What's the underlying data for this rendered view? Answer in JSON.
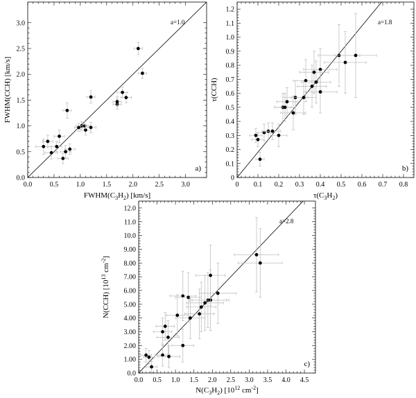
{
  "chart_data": [
    {
      "type": "scatter",
      "panel": "a)",
      "xlabel_main": "FWHM(C",
      "xlabel_sub1": "3",
      "xlabel_mid": "H",
      "xlabel_sub2": "2",
      "xlabel_end": ") [km/s]",
      "ylabel": "FWHM(CCH) [km/s]",
      "xlim": [
        0,
        3.4
      ],
      "ylim": [
        0,
        3.4
      ],
      "xticks": [
        0.0,
        0.5,
        1.0,
        1.5,
        2.0,
        2.5,
        3.0
      ],
      "xtick_labels": [
        "0.0",
        "0.5",
        "1.0",
        "1.5",
        "2.0",
        "2.5",
        "3.0"
      ],
      "yticks": [
        0.0,
        0.5,
        1.0,
        1.5,
        2.0,
        2.5,
        3.0
      ],
      "ytick_labels": [
        "0.0",
        "0.5",
        "1.0",
        "1.5",
        "2.0",
        "2.5",
        "3.0"
      ],
      "annotation": "a=1.0",
      "fit_line": {
        "x": [
          0,
          3.4
        ],
        "y": [
          0,
          3.4
        ]
      },
      "points": [
        {
          "x": 0.3,
          "y": 0.6,
          "ex": 0.15,
          "ey": 0.15
        },
        {
          "x": 0.38,
          "y": 0.7,
          "ex": 0.1,
          "ey": 0.12
        },
        {
          "x": 0.45,
          "y": 0.48,
          "ex": 0.12,
          "ey": 0.12
        },
        {
          "x": 0.55,
          "y": 0.6,
          "ex": 0.1,
          "ey": 0.1
        },
        {
          "x": 0.6,
          "y": 0.8,
          "ex": 0.1,
          "ey": 0.12
        },
        {
          "x": 0.67,
          "y": 0.37,
          "ex": 0.1,
          "ey": 0.1
        },
        {
          "x": 0.72,
          "y": 0.5,
          "ex": 0.1,
          "ey": 0.12
        },
        {
          "x": 0.75,
          "y": 1.3,
          "ex": 0.08,
          "ey": 0.15
        },
        {
          "x": 0.8,
          "y": 0.55,
          "ex": 0.1,
          "ey": 0.1
        },
        {
          "x": 0.97,
          "y": 0.97,
          "ex": 0.08,
          "ey": 0.08
        },
        {
          "x": 1.02,
          "y": 1.0,
          "ex": 0.1,
          "ey": 0.08
        },
        {
          "x": 1.08,
          "y": 1.0,
          "ex": 0.08,
          "ey": 0.08
        },
        {
          "x": 1.1,
          "y": 0.92,
          "ex": 0.1,
          "ey": 0.1
        },
        {
          "x": 1.2,
          "y": 0.97,
          "ex": 0.1,
          "ey": 0.1
        },
        {
          "x": 1.2,
          "y": 1.56,
          "ex": 0.08,
          "ey": 0.12
        },
        {
          "x": 1.7,
          "y": 1.42,
          "ex": 0.08,
          "ey": 0.1
        },
        {
          "x": 1.7,
          "y": 1.47,
          "ex": 0.08,
          "ey": 0.1
        },
        {
          "x": 1.8,
          "y": 1.65,
          "ex": 0.1,
          "ey": 0.1
        },
        {
          "x": 1.87,
          "y": 1.55,
          "ex": 0.1,
          "ey": 0.1
        },
        {
          "x": 2.1,
          "y": 2.5,
          "ex": 0.08,
          "ey": 0.12
        },
        {
          "x": 2.18,
          "y": 2.02,
          "ex": 0.08,
          "ey": 0.1
        }
      ]
    },
    {
      "type": "scatter",
      "panel": "b)",
      "xlabel_main": "τ(C",
      "xlabel_sub1": "3",
      "xlabel_mid": "H",
      "xlabel_sub2": "2",
      "xlabel_end": ")",
      "ylabel": "τ(CCH)",
      "xlim": [
        0,
        0.85
      ],
      "ylim": [
        0,
        1.25
      ],
      "xticks": [
        0,
        0.1,
        0.2,
        0.3,
        0.4,
        0.5,
        0.6,
        0.7,
        0.8
      ],
      "xtick_labels": [
        "0",
        "0.1",
        "0.2",
        "0.3",
        "0.4",
        "0.5",
        "0.6",
        "0.7",
        "0.8"
      ],
      "yticks": [
        0,
        0.1,
        0.2,
        0.3,
        0.4,
        0.5,
        0.6,
        0.7,
        0.8,
        0.9,
        1.0,
        1.1,
        1.2
      ],
      "ytick_labels": [
        "0",
        "0.1",
        "0.2",
        "0.3",
        "0.4",
        "0.5",
        "0.6",
        "0.7",
        "0.8",
        "0.9",
        "1.0",
        "1.1",
        "1.2"
      ],
      "annotation": "a=1.8",
      "fit_line": {
        "x": [
          0,
          0.7
        ],
        "y": [
          0,
          1.26
        ]
      },
      "points": [
        {
          "x": 0.09,
          "y": 0.3,
          "ex": 0.03,
          "ey": 0.05
        },
        {
          "x": 0.1,
          "y": 0.27,
          "ex": 0.03,
          "ey": 0.05
        },
        {
          "x": 0.11,
          "y": 0.13,
          "ex": 0.02,
          "ey": 0.05
        },
        {
          "x": 0.13,
          "y": 0.32,
          "ex": 0.03,
          "ey": 0.06
        },
        {
          "x": 0.15,
          "y": 0.33,
          "ex": 0.03,
          "ey": 0.06
        },
        {
          "x": 0.17,
          "y": 0.33,
          "ex": 0.04,
          "ey": 0.06
        },
        {
          "x": 0.2,
          "y": 0.3,
          "ex": 0.04,
          "ey": 0.08
        },
        {
          "x": 0.22,
          "y": 0.5,
          "ex": 0.04,
          "ey": 0.1
        },
        {
          "x": 0.23,
          "y": 0.5,
          "ex": 0.05,
          "ey": 0.1
        },
        {
          "x": 0.24,
          "y": 0.54,
          "ex": 0.05,
          "ey": 0.1
        },
        {
          "x": 0.27,
          "y": 0.46,
          "ex": 0.06,
          "ey": 0.12
        },
        {
          "x": 0.28,
          "y": 0.57,
          "ex": 0.06,
          "ey": 0.12
        },
        {
          "x": 0.32,
          "y": 0.57,
          "ex": 0.06,
          "ey": 0.12
        },
        {
          "x": 0.33,
          "y": 0.69,
          "ex": 0.06,
          "ey": 0.15
        },
        {
          "x": 0.36,
          "y": 0.65,
          "ex": 0.07,
          "ey": 0.15
        },
        {
          "x": 0.37,
          "y": 0.75,
          "ex": 0.07,
          "ey": 0.15
        },
        {
          "x": 0.38,
          "y": 0.68,
          "ex": 0.07,
          "ey": 0.15
        },
        {
          "x": 0.4,
          "y": 0.77,
          "ex": 0.08,
          "ey": 0.15
        },
        {
          "x": 0.4,
          "y": 0.61,
          "ex": 0.08,
          "ey": 0.15
        },
        {
          "x": 0.49,
          "y": 0.87,
          "ex": 0.1,
          "ey": 0.22
        },
        {
          "x": 0.52,
          "y": 0.82,
          "ex": 0.1,
          "ey": 0.22
        },
        {
          "x": 0.57,
          "y": 0.87,
          "ex": 0.1,
          "ey": 0.3
        }
      ]
    },
    {
      "type": "scatter",
      "panel": "c)",
      "xlabel_main": "N(C",
      "xlabel_sub1": "3",
      "xlabel_mid": "H",
      "xlabel_sub2": "2",
      "xlabel_end": ") [10",
      "xlabel_sup": "12",
      "xlabel_tail": " cm",
      "xlabel_sup2": "-2",
      "xlabel_close": "]",
      "ylabel": "N(CCH) [10",
      "ylabel_sup": "13",
      "ylabel_tail": " cm",
      "ylabel_sup2": "-2",
      "ylabel_close": "]",
      "xlim": [
        0,
        4.8
      ],
      "ylim": [
        0,
        12.5
      ],
      "xticks": [
        0.0,
        0.5,
        1.0,
        1.5,
        2.0,
        2.5,
        3.0,
        3.5,
        4.0,
        4.5
      ],
      "xtick_labels": [
        "0.0",
        "0.5",
        "1.0",
        "1.5",
        "2.0",
        "2.5",
        "3.0",
        "3.5",
        "4.0",
        "4.5"
      ],
      "yticks": [
        0,
        1,
        2,
        3,
        4,
        5,
        6,
        7,
        8,
        9,
        10,
        11,
        12
      ],
      "ytick_labels": [
        "0.0",
        "1.00",
        "2.00",
        "3.00",
        "4.00",
        "5.00",
        "6.00",
        "7.00",
        "8.00",
        "9.00",
        "10.0",
        "11.0",
        "12.0"
      ],
      "annotation": "a=2.8",
      "fit_line": {
        "x": [
          0,
          4.5
        ],
        "y": [
          0,
          12.6
        ]
      },
      "points": [
        {
          "x": 0.2,
          "y": 1.3,
          "ex": 0.15,
          "ey": 0.5
        },
        {
          "x": 0.28,
          "y": 1.15,
          "ex": 0.15,
          "ey": 0.5
        },
        {
          "x": 0.35,
          "y": 0.45,
          "ex": 0.15,
          "ey": 0.4
        },
        {
          "x": 0.65,
          "y": 1.3,
          "ex": 0.2,
          "ey": 0.8
        },
        {
          "x": 0.65,
          "y": 3.0,
          "ex": 0.25,
          "ey": 1.0
        },
        {
          "x": 0.72,
          "y": 3.4,
          "ex": 0.25,
          "ey": 1.0
        },
        {
          "x": 0.8,
          "y": 2.6,
          "ex": 0.3,
          "ey": 1.2
        },
        {
          "x": 0.82,
          "y": 1.2,
          "ex": 0.3,
          "ey": 0.8
        },
        {
          "x": 1.05,
          "y": 4.2,
          "ex": 0.3,
          "ey": 1.5
        },
        {
          "x": 1.2,
          "y": 2.0,
          "ex": 0.3,
          "ey": 1.2
        },
        {
          "x": 1.2,
          "y": 5.6,
          "ex": 0.35,
          "ey": 1.8
        },
        {
          "x": 1.35,
          "y": 5.5,
          "ex": 0.35,
          "ey": 1.8
        },
        {
          "x": 1.4,
          "y": 4.0,
          "ex": 0.4,
          "ey": 1.5
        },
        {
          "x": 1.65,
          "y": 4.3,
          "ex": 0.4,
          "ey": 1.8
        },
        {
          "x": 1.7,
          "y": 4.8,
          "ex": 0.4,
          "ey": 1.8
        },
        {
          "x": 1.8,
          "y": 5.1,
          "ex": 0.5,
          "ey": 2.0
        },
        {
          "x": 1.88,
          "y": 5.3,
          "ex": 0.5,
          "ey": 2.0
        },
        {
          "x": 1.95,
          "y": 5.3,
          "ex": 0.5,
          "ey": 2.2
        },
        {
          "x": 1.95,
          "y": 7.1,
          "ex": 0.4,
          "ey": 2.2
        },
        {
          "x": 2.15,
          "y": 5.8,
          "ex": 0.5,
          "ey": 2.2
        },
        {
          "x": 3.2,
          "y": 8.6,
          "ex": 0.6,
          "ey": 2.7
        },
        {
          "x": 3.3,
          "y": 8.0,
          "ex": 0.6,
          "ey": 2.5
        }
      ]
    }
  ]
}
